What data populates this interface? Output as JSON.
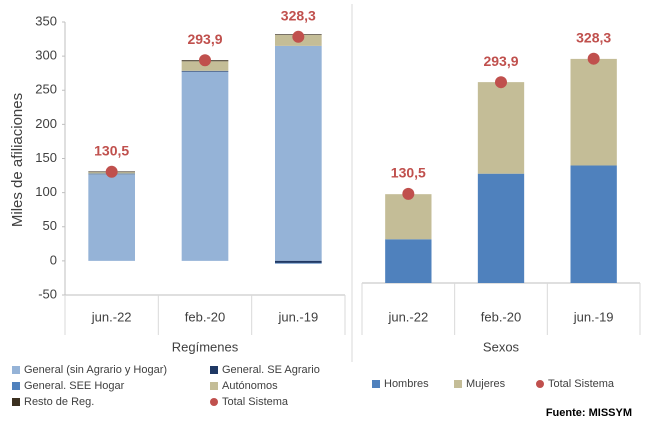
{
  "chart_data": [
    {
      "type": "bar",
      "stacked": true,
      "ylabel": "Miles de afiliaciones",
      "xlabel": "Regímenes",
      "categories": [
        "jun.-22",
        "feb.-20",
        "jun.-19"
      ],
      "ylim": [
        -50,
        350
      ],
      "yticks": [
        -50,
        0,
        50,
        100,
        150,
        200,
        250,
        300,
        350
      ],
      "series": [
        {
          "name": "General (sin Agrario y Hogar)",
          "color": "#95b3d7",
          "values": [
            127,
            277,
            315
          ]
        },
        {
          "name": "General. SE Agrario",
          "color": "#1f3864",
          "values": [
            0.5,
            1,
            -3
          ]
        },
        {
          "name": "General. SEE Hogar",
          "color": "#4f81bd",
          "values": [
            0.5,
            0.5,
            -1
          ]
        },
        {
          "name": "Autónomos",
          "color": "#c4bd97",
          "values": [
            2,
            14,
            16
          ]
        },
        {
          "name": "Resto de Reg.",
          "color": "#3b3020",
          "values": [
            1,
            1.5,
            1
          ]
        },
        {
          "name": "Total Sistema",
          "type": "scatter",
          "color": "#c0504d",
          "values": [
            130.5,
            293.9,
            328.3
          ],
          "value_labels": [
            "130,5",
            "293,9",
            "328,3"
          ]
        }
      ]
    },
    {
      "type": "bar",
      "stacked": true,
      "xlabel": "Sexos",
      "categories": [
        "jun.-22",
        "feb.-20",
        "jun.-19"
      ],
      "ylim": [
        0,
        382
      ],
      "series": [
        {
          "name": "Hombres",
          "color": "#4f81bd",
          "values": [
            64,
            160,
            172
          ]
        },
        {
          "name": "Mujeres",
          "color": "#c4bd97",
          "values": [
            66,
            134,
            156
          ]
        },
        {
          "name": "Total Sistema",
          "type": "scatter",
          "color": "#c0504d",
          "values": [
            130.5,
            293.9,
            328.3
          ],
          "value_labels": [
            "130,5",
            "293,9",
            "328,3"
          ]
        }
      ]
    }
  ],
  "source": "Fuente: MISSYM"
}
